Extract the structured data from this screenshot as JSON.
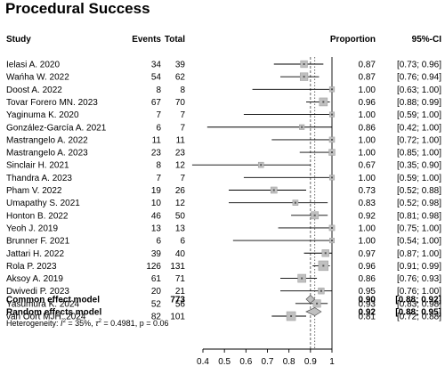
{
  "title": "Procedural Success",
  "chart_data": {
    "type": "forest",
    "columns": {
      "study": "Study",
      "events": "Events",
      "total": "Total",
      "proportion": "Proportion",
      "ci": "95%-CI"
    },
    "studies": [
      {
        "name": "Ielasi A. 2020",
        "events": "34",
        "total": "39",
        "prop": 0.87,
        "prop_text": "0.87",
        "lo": 0.73,
        "hi": 0.96,
        "ci_text": "[0.73; 0.96]"
      },
      {
        "name": "Wańha W. 2022",
        "events": "54",
        "total": "62",
        "prop": 0.87,
        "prop_text": "0.87",
        "lo": 0.76,
        "hi": 0.94,
        "ci_text": "[0.76; 0.94]"
      },
      {
        "name": "Doost A. 2022",
        "events": "8",
        "total": "8",
        "prop": 1.0,
        "prop_text": "1.00",
        "lo": 0.63,
        "hi": 1.0,
        "ci_text": "[0.63; 1.00]"
      },
      {
        "name": "Tovar Forero MN. 2023",
        "events": "67",
        "total": "70",
        "prop": 0.96,
        "prop_text": "0.96",
        "lo": 0.88,
        "hi": 0.99,
        "ci_text": "[0.88; 0.99]"
      },
      {
        "name": "Yaginuma K. 2020",
        "events": "7",
        "total": "7",
        "prop": 1.0,
        "prop_text": "1.00",
        "lo": 0.59,
        "hi": 1.0,
        "ci_text": "[0.59; 1.00]"
      },
      {
        "name": "González-García A. 2021",
        "events": "6",
        "total": "7",
        "prop": 0.86,
        "prop_text": "0.86",
        "lo": 0.42,
        "hi": 1.0,
        "ci_text": "[0.42; 1.00]"
      },
      {
        "name": "Mastrangelo A. 2022",
        "events": "11",
        "total": "11",
        "prop": 1.0,
        "prop_text": "1.00",
        "lo": 0.72,
        "hi": 1.0,
        "ci_text": "[0.72; 1.00]"
      },
      {
        "name": "Mastrangelo A. 2023",
        "events": "23",
        "total": "23",
        "prop": 1.0,
        "prop_text": "1.00",
        "lo": 0.85,
        "hi": 1.0,
        "ci_text": "[0.85; 1.00]"
      },
      {
        "name": "Sinclair H. 2021",
        "events": "8",
        "total": "12",
        "prop": 0.67,
        "prop_text": "0.67",
        "lo": 0.35,
        "hi": 0.9,
        "ci_text": "[0.35; 0.90]"
      },
      {
        "name": "Thandra A. 2023",
        "events": "7",
        "total": "7",
        "prop": 1.0,
        "prop_text": "1.00",
        "lo": 0.59,
        "hi": 1.0,
        "ci_text": "[0.59; 1.00]"
      },
      {
        "name": "Pham V. 2022",
        "events": "19",
        "total": "26",
        "prop": 0.73,
        "prop_text": "0.73",
        "lo": 0.52,
        "hi": 0.88,
        "ci_text": "[0.52; 0.88]"
      },
      {
        "name": "Umapathy S. 2021",
        "events": "10",
        "total": "12",
        "prop": 0.83,
        "prop_text": "0.83",
        "lo": 0.52,
        "hi": 0.98,
        "ci_text": "[0.52; 0.98]"
      },
      {
        "name": "Honton B. 2022",
        "events": "46",
        "total": "50",
        "prop": 0.92,
        "prop_text": "0.92",
        "lo": 0.81,
        "hi": 0.98,
        "ci_text": "[0.81; 0.98]"
      },
      {
        "name": "Yeoh J. 2019",
        "events": "13",
        "total": "13",
        "prop": 1.0,
        "prop_text": "1.00",
        "lo": 0.75,
        "hi": 1.0,
        "ci_text": "[0.75; 1.00]"
      },
      {
        "name": "Brunner F. 2021",
        "events": "6",
        "total": "6",
        "prop": 1.0,
        "prop_text": "1.00",
        "lo": 0.54,
        "hi": 1.0,
        "ci_text": "[0.54; 1.00]"
      },
      {
        "name": "Jattari H. 2022",
        "events": "39",
        "total": "40",
        "prop": 0.97,
        "prop_text": "0.97",
        "lo": 0.87,
        "hi": 1.0,
        "ci_text": "[0.87; 1.00]"
      },
      {
        "name": "Rola P. 2023",
        "events": "126",
        "total": "131",
        "prop": 0.96,
        "prop_text": "0.96",
        "lo": 0.91,
        "hi": 0.99,
        "ci_text": "[0.91; 0.99]"
      },
      {
        "name": "Aksoy A. 2019",
        "events": "61",
        "total": "71",
        "prop": 0.86,
        "prop_text": "0.86",
        "lo": 0.76,
        "hi": 0.93,
        "ci_text": "[0.76; 0.93]"
      },
      {
        "name": "Dwivedi P. 2023",
        "events": "20",
        "total": "21",
        "prop": 0.95,
        "prop_text": "0.95",
        "lo": 0.76,
        "hi": 1.0,
        "ci_text": "[0.76; 1.00]"
      },
      {
        "name": "Yasumura K. 2024",
        "events": "52",
        "total": "56",
        "prop": 0.93,
        "prop_text": "0.93",
        "lo": 0.83,
        "hi": 0.98,
        "ci_text": "[0.83; 0.98]"
      },
      {
        "name": "van Oort MJH. 2024",
        "events": "82",
        "total": "101",
        "prop": 0.81,
        "prop_text": "0.81",
        "lo": 0.72,
        "hi": 0.88,
        "ci_text": "[0.72; 0.88]"
      }
    ],
    "summaries": [
      {
        "name": "Common effect model",
        "total": "773",
        "prop": 0.9,
        "prop_text": "0.90",
        "lo": 0.88,
        "hi": 0.92,
        "ci_text": "[0.88; 0.92]"
      },
      {
        "name": "Random effects model",
        "total": "",
        "prop": 0.92,
        "prop_text": "0.92",
        "lo": 0.88,
        "hi": 0.95,
        "ci_text": "[0.88; 0.95]"
      }
    ],
    "heterogeneity": {
      "prefix": "Heterogeneity: ",
      "i2_text": " = 35%, ",
      "tau2_text": " = 0.4981, ",
      "p_text": "p = 0.06"
    },
    "x_ticks": [
      "0.4",
      "0.5",
      "0.6",
      "0.7",
      "0.8",
      "0.9",
      "1"
    ],
    "xlim": [
      0.4,
      1.0
    ],
    "colors": {
      "square": "#c0c0c0",
      "square_edge": "#9a9a9a",
      "line": "#000000",
      "dashed": "#555555"
    }
  }
}
